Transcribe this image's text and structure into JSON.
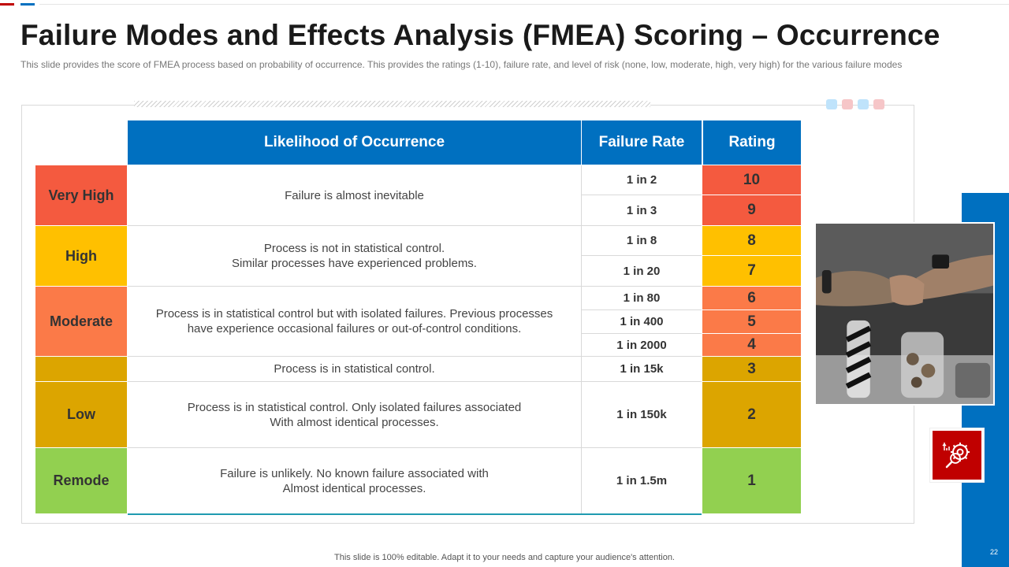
{
  "title": "Failure Modes and Effects Analysis (FMEA) Scoring – Occurrence",
  "subtitle": "This slide provides the score of FMEA process based on probability of occurrence. This provides the ratings (1-10), failure rate, and level of risk (none, low, moderate, high, very high) for the various failure modes",
  "table": {
    "headers": {
      "likelihood": "Likelihood of Occurrence",
      "failure_rate": "Failure Rate",
      "rating": "Rating"
    },
    "levels": [
      {
        "label": "Very High",
        "color": "#f45a3f"
      },
      {
        "label": "High",
        "color": "#ffc000"
      },
      {
        "label": "Moderate",
        "color": "#fb7a48"
      },
      {
        "label": "",
        "color": "#dca500"
      },
      {
        "label": "Low",
        "color": "#dca500"
      },
      {
        "label": "Remode",
        "color": "#92d050"
      }
    ],
    "descriptions": [
      {
        "lines": [
          "Failure is almost inevitable"
        ]
      },
      {
        "lines": [
          "Process is not in statistical control.",
          "Similar processes have experienced problems."
        ]
      },
      {
        "lines": [
          "Process is in statistical control but with isolated failures. Previous processes",
          "have experience occasional failures or out-of-control  conditions."
        ]
      },
      {
        "lines": [
          "Process is in statistical control."
        ]
      },
      {
        "lines": [
          "Process is in statistical control.  Only isolated failures associated",
          "With almost identical processes."
        ]
      },
      {
        "lines": [
          "Failure is unlikely.  No known failure associated with",
          "Almost identical processes."
        ]
      }
    ],
    "rows": [
      {
        "rate": "1 in 2",
        "rating": "10",
        "color": "#f45a3f"
      },
      {
        "rate": "1 in 3",
        "rating": "9",
        "color": "#f45a3f"
      },
      {
        "rate": "1 in 8",
        "rating": "8",
        "color": "#ffc000"
      },
      {
        "rate": "1 in 20",
        "rating": "7",
        "color": "#ffc000"
      },
      {
        "rate": "1 in 80",
        "rating": "6",
        "color": "#fb7a48"
      },
      {
        "rate": "1 in 400",
        "rating": "5",
        "color": "#fb7a48"
      },
      {
        "rate": "1 in 2000",
        "rating": "4",
        "color": "#fb7a48"
      },
      {
        "rate": "1 in 15k",
        "rating": "3",
        "color": "#dca500"
      },
      {
        "rate": "1 in 150k",
        "rating": "2",
        "color": "#dca500"
      },
      {
        "rate": "1 in 1.5m",
        "rating": "1",
        "color": "#92d050"
      }
    ]
  },
  "decor": {
    "dot_colors": [
      "#bfe3fb",
      "#f6c6c8",
      "#bfe3fb",
      "#f6c6c8"
    ],
    "photo": "hands-fist-bump-photo",
    "icon": "gear-search-icon"
  },
  "page_number": "22",
  "footer": "This slide is 100% editable. Adapt it to your needs and capture your audience's attention."
}
